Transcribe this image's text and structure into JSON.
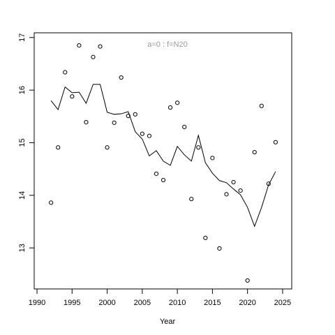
{
  "chart_data": {
    "type": "scatter",
    "annotation": "a=0  :  f=N20",
    "xlabel": "Year",
    "x": [
      1992,
      1993,
      1994,
      1995,
      1996,
      1997,
      1998,
      1999,
      2000,
      2001,
      2002,
      2003,
      2004,
      2005,
      2006,
      2007,
      2008,
      2009,
      2010,
      2011,
      2012,
      2013,
      2014,
      2015,
      2016,
      2017,
      2018,
      2019,
      2020,
      2021,
      2022,
      2023,
      2024
    ],
    "series": [
      {
        "mode": "points",
        "color": "#000000",
        "values": [
          13.86,
          14.91,
          16.34,
          15.88,
          16.85,
          15.39,
          16.63,
          16.83,
          14.91,
          15.38,
          16.24,
          15.51,
          15.54,
          15.17,
          15.13,
          14.41,
          14.29,
          15.67,
          15.76,
          15.3,
          13.93,
          14.91,
          13.19,
          14.71,
          12.99,
          14.02,
          14.25,
          14.09,
          12.38,
          14.82,
          15.7,
          14.22,
          15.01
        ]
      },
      {
        "mode": "line",
        "color": "#000000",
        "values": [
          15.8,
          15.63,
          16.06,
          15.95,
          15.96,
          15.75,
          16.11,
          16.11,
          15.58,
          15.54,
          15.55,
          15.59,
          15.21,
          15.07,
          14.75,
          14.85,
          14.65,
          14.57,
          14.93,
          14.77,
          14.65,
          15.14,
          14.62,
          14.42,
          14.28,
          14.24,
          14.12,
          14.01,
          13.77,
          13.41,
          13.77,
          14.2,
          14.45
        ]
      }
    ],
    "xlim": [
      1989.6,
      2026.3
    ],
    "xticks": [
      1990,
      1995,
      2000,
      2005,
      2010,
      2015,
      2020,
      2025
    ],
    "ylim": [
      12.22,
      17.09
    ],
    "yticks": [
      13,
      14,
      15,
      16,
      17
    ]
  }
}
